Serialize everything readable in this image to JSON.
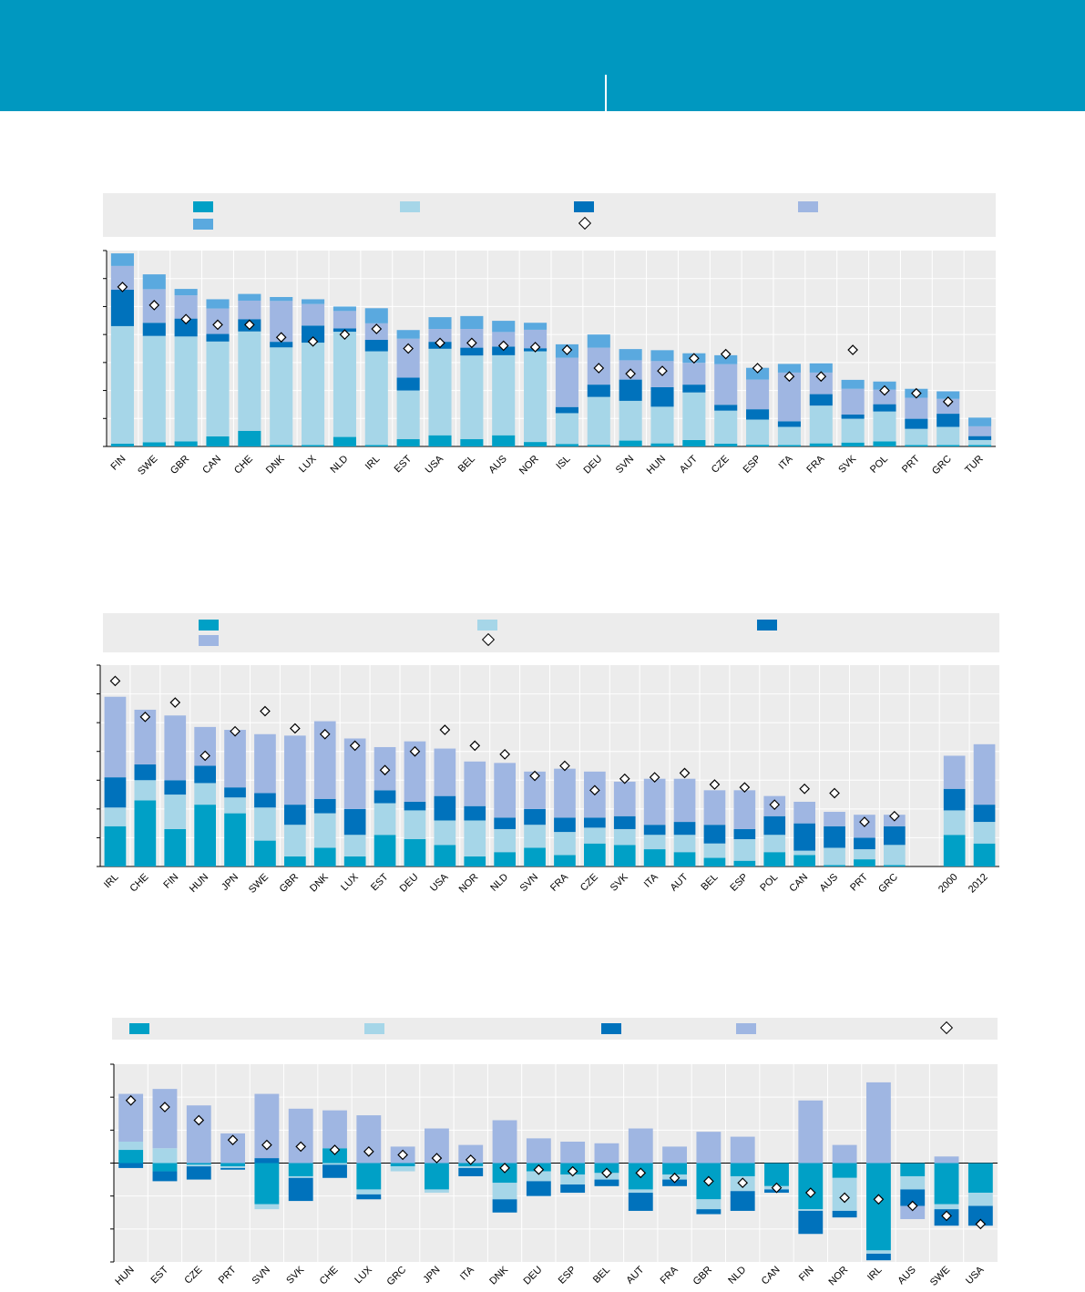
{
  "colors": {
    "c1": "#00a0c6",
    "c2": "#a6d6e8",
    "c3": "#0072bc",
    "c4": "#9fb6e2",
    "c5": "#5aa9df",
    "plotBg": "#ececec"
  },
  "chart_data": [
    {
      "type": "bar",
      "stacked": true,
      "title": "",
      "xlabel": "",
      "ylabel": "",
      "ylim": [
        0,
        70
      ],
      "legend": "top",
      "series_order": [
        "c1",
        "c2",
        "c3",
        "c4",
        "c5"
      ],
      "categories": [
        "FIN",
        "SWE",
        "GBR",
        "CAN",
        "CHE",
        "DNK",
        "LUX",
        "NLD",
        "IRL",
        "EST",
        "USA",
        "BEL",
        "AUS",
        "NOR",
        "ISL",
        "DEU",
        "SVN",
        "HUN",
        "AUT",
        "CZE",
        "ESP",
        "ITA",
        "FRA",
        "SVK",
        "POL",
        "PRT",
        "GRC",
        "TUR"
      ],
      "series": [
        {
          "name": "",
          "values": [
            1,
            1.5,
            1.8,
            3.6,
            5.6,
            0.5,
            0.5,
            3.4,
            0.5,
            2.6,
            4,
            2.6,
            4,
            1.6,
            0.9,
            0.6,
            2.1,
            1.1,
            2.3,
            1,
            0.6,
            0.5,
            1.1,
            1.4,
            1.8,
            0.5,
            0.5,
            0.5
          ]
        },
        {
          "name": "",
          "values": [
            42,
            38,
            37.5,
            33.9,
            35.5,
            34.9,
            36.6,
            37.6,
            33.5,
            17.4,
            30.9,
            29.9,
            28.6,
            32.4,
            11,
            17.1,
            14.2,
            13.1,
            17,
            11.8,
            9,
            6.5,
            13.5,
            8.5,
            10.7,
            5.8,
            6.5,
            1.8
          ]
        },
        {
          "name": "",
          "values": [
            13,
            4.7,
            6.4,
            2.7,
            4.4,
            2,
            6.1,
            1.2,
            4.1,
            4.6,
            2.5,
            2.8,
            3.1,
            1.1,
            2.2,
            4.4,
            7.6,
            7,
            2.8,
            2.1,
            3.7,
            2,
            4.1,
            1.5,
            2.6,
            3.6,
            4.7,
            1.4
          ]
        },
        {
          "name": "",
          "values": [
            8.5,
            12,
            8.3,
            9.1,
            6.6,
            14.6,
            7.7,
            6.2,
            5.9,
            13.9,
            4.6,
            6.7,
            5.2,
            6.6,
            17.6,
            13.2,
            6.9,
            9.3,
            7.8,
            14.5,
            10.6,
            17.4,
            7.7,
            9.2,
            5.2,
            7.5,
            5.3,
            3.5
          ]
        },
        {
          "name": "",
          "values": [
            4.5,
            5.3,
            2.3,
            3.3,
            2.4,
            1.4,
            1.7,
            1.6,
            5.4,
            3.1,
            4.2,
            4.6,
            4,
            2.5,
            4.8,
            4.7,
            4,
            3.9,
            3.4,
            3.2,
            4.2,
            3.1,
            3.3,
            3.2,
            2.9,
            3.2,
            2.7,
            3.1
          ]
        }
      ],
      "markers": [
        57,
        50.5,
        45.5,
        43.5,
        43.5,
        39,
        37.5,
        40,
        42,
        35,
        37,
        37,
        36,
        35.5,
        34.5,
        28,
        26,
        27,
        31.5,
        33,
        28,
        25,
        25,
        34.5,
        20,
        19,
        16,
        null
      ]
    },
    {
      "type": "bar",
      "stacked": true,
      "title": "",
      "xlabel": "",
      "ylabel": "",
      "ylim": [
        0,
        70
      ],
      "legend": "top",
      "series_order": [
        "c1",
        "c2",
        "c3",
        "c4"
      ],
      "categories": [
        "IRL",
        "CHE",
        "FIN",
        "HUN",
        "JPN",
        "SWE",
        "GBR",
        "DNK",
        "LUX",
        "EST",
        "DEU",
        "USA",
        "NOR",
        "NLD",
        "SVN",
        "FRA",
        "CZE",
        "SVK",
        "ITA",
        "AUT",
        "BEL",
        "ESP",
        "POL",
        "CAN",
        "AUS",
        "PRT",
        "GRC",
        "",
        "2000",
        "2012"
      ],
      "series": [
        {
          "name": "",
          "values": [
            14,
            23,
            13,
            21.5,
            18.5,
            9,
            3.5,
            6.5,
            3.5,
            11,
            9.5,
            7.5,
            3.5,
            5,
            6.5,
            4,
            8,
            7.5,
            6,
            5,
            3,
            2,
            5,
            4,
            0.5,
            2.5,
            0.5,
            0,
            11,
            8
          ]
        },
        {
          "name": "",
          "values": [
            6.5,
            7,
            12,
            7.5,
            5.5,
            11.5,
            11,
            12,
            7.5,
            11,
            10,
            8.5,
            12.5,
            8,
            8,
            8,
            5.5,
            5.5,
            5,
            6,
            5,
            7.5,
            6,
            1.5,
            6,
            3.5,
            7,
            0,
            8.5,
            7.5
          ]
        },
        {
          "name": "",
          "values": [
            10.5,
            5.5,
            5,
            6,
            3.5,
            5,
            7,
            5,
            9,
            4.5,
            3,
            8.5,
            5,
            4,
            5.5,
            5,
            3.5,
            4.5,
            3.5,
            4.5,
            6.5,
            3.5,
            6.5,
            9.5,
            7.5,
            4,
            6.5,
            0,
            7.5,
            6
          ]
        },
        {
          "name": "",
          "values": [
            28,
            19,
            22.5,
            13.5,
            20,
            20.5,
            24,
            27,
            24.5,
            15,
            21,
            16.5,
            15.5,
            19,
            13,
            17,
            16,
            12,
            16,
            15,
            12,
            13.5,
            7,
            7.5,
            5,
            8,
            4,
            0,
            11.5,
            21
          ]
        }
      ],
      "markers": [
        64.5,
        52,
        57,
        38.5,
        47,
        54,
        48,
        46,
        42,
        33.5,
        40,
        47.5,
        42,
        39,
        31.5,
        35,
        26.5,
        30.5,
        31,
        32.5,
        28.5,
        27.5,
        21.5,
        27,
        25.5,
        15.5,
        17.5,
        null,
        null,
        null
      ]
    },
    {
      "type": "bar",
      "stacked": true,
      "diverging": true,
      "title": "",
      "xlabel": "",
      "ylabel": "",
      "ylim": [
        -30,
        30
      ],
      "legend": "top",
      "series_order": [
        "c1",
        "c2",
        "c3",
        "c4"
      ],
      "categories": [
        "HUN",
        "EST",
        "CZE",
        "PRT",
        "SVN",
        "SVK",
        "CHE",
        "LUX",
        "GRC",
        "JPN",
        "ITA",
        "DNK",
        "DEU",
        "ESP",
        "BEL",
        "AUT",
        "FRA",
        "GBR",
        "NLD",
        "CAN",
        "FIN",
        "NOR",
        "IRL",
        "AUS",
        "SWE",
        "USA"
      ],
      "series": [
        {
          "name": "",
          "values": [
            4,
            -2.5,
            -0.5,
            -1,
            -12.5,
            -4,
            4.5,
            -8,
            -1,
            -8,
            -1,
            -6,
            -2.5,
            -3.5,
            -3,
            -8,
            -3.5,
            -11,
            -4,
            -7,
            -14,
            -4.5,
            -26.5,
            -4,
            -12.5,
            -9
          ]
        },
        {
          "name": "",
          "values": [
            2.5,
            4.5,
            -0.5,
            -0.5,
            -1.5,
            -0.5,
            -0.5,
            -1.5,
            -1.5,
            -1,
            -0.5,
            -5,
            -3,
            -3,
            -2,
            -1,
            -1.5,
            -3,
            -4.5,
            -1,
            -0.5,
            -10,
            -1,
            -4,
            -1.5,
            -4
          ]
        },
        {
          "name": "",
          "values": [
            -1.5,
            -3,
            -4,
            -0.5,
            1.5,
            -7,
            -4,
            -1.5,
            0,
            0,
            -2.5,
            -4,
            -4.5,
            -2.5,
            -2,
            -5.5,
            -2,
            -1.5,
            -6,
            -1,
            -7,
            -2,
            -2,
            -5,
            -5,
            -6
          ]
        },
        {
          "name": "",
          "values": [
            14.5,
            18,
            17.5,
            9,
            19.5,
            16.5,
            11.5,
            14.5,
            5,
            10.5,
            5.5,
            13,
            7.5,
            6.5,
            6,
            10.5,
            5,
            9.5,
            8,
            0,
            19,
            5.5,
            24.5,
            -4,
            2,
            0
          ]
        }
      ],
      "markers": [
        19,
        17,
        13,
        7,
        5.5,
        5,
        4,
        3.5,
        2.5,
        1.5,
        1,
        -1.5,
        -2,
        -2.5,
        -3,
        -3,
        -4.5,
        -5.5,
        -6,
        -7.5,
        -9,
        -10.5,
        -11,
        -13,
        -16,
        -18.5
      ]
    }
  ]
}
